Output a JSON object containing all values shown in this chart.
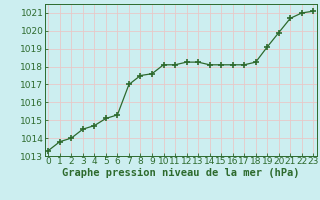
{
  "x": [
    0,
    1,
    2,
    3,
    4,
    5,
    6,
    7,
    8,
    9,
    10,
    11,
    12,
    13,
    14,
    15,
    16,
    17,
    18,
    19,
    20,
    21,
    22,
    23
  ],
  "y": [
    1013.3,
    1013.8,
    1014.0,
    1014.5,
    1014.7,
    1015.1,
    1015.3,
    1017.0,
    1017.5,
    1017.6,
    1018.1,
    1018.1,
    1018.25,
    1018.25,
    1018.1,
    1018.1,
    1018.1,
    1018.1,
    1018.25,
    1019.1,
    1019.9,
    1020.7,
    1021.0,
    1021.1
  ],
  "line_color": "#2d6a2d",
  "marker": "+",
  "marker_size": 4,
  "marker_linewidth": 1.2,
  "line_width": 0.9,
  "background_color": "#cceef0",
  "grid_color": "#e8c8c8",
  "xlabel": "Graphe pression niveau de la mer (hPa)",
  "xlabel_fontsize": 7.5,
  "tick_fontsize": 6.5,
  "ylim": [
    1013.0,
    1021.5
  ],
  "yticks": [
    1013,
    1014,
    1015,
    1016,
    1017,
    1018,
    1019,
    1020,
    1021
  ],
  "xticks": [
    0,
    1,
    2,
    3,
    4,
    5,
    6,
    7,
    8,
    9,
    10,
    11,
    12,
    13,
    14,
    15,
    16,
    17,
    18,
    19,
    20,
    21,
    22,
    23
  ],
  "xlim": [
    -0.3,
    23.3
  ]
}
